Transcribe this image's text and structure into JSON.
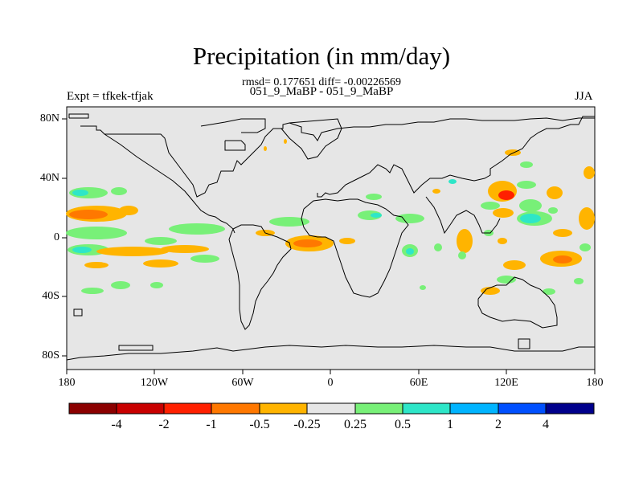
{
  "title": "Precipitation (in mm/day)",
  "stats": "rmsd= 0.177651 diff= -0.00226569",
  "subtitle": "051_9_MaBP - 051_9_MaBP",
  "left_label": "Expt = tfkek-tfjak",
  "right_label": "JJA",
  "lat_labels": [
    "80N",
    "40N",
    "0",
    "40S",
    "80S"
  ],
  "lon_labels": [
    "180",
    "120W",
    "60W",
    "0",
    "60E",
    "120E",
    "180"
  ],
  "colorbar": {
    "colors": [
      "#8b0000",
      "#c80000",
      "#ff2000",
      "#ff7800",
      "#ffb400",
      "#e6e6e6",
      "#78f078",
      "#2ee6c8",
      "#00b4ff",
      "#0050ff",
      "#00008c"
    ],
    "labels": [
      "-4",
      "-2",
      "-1",
      "-0.5",
      "-0.25",
      "0.25",
      "0.5",
      "1",
      "2",
      "4"
    ]
  },
  "colors": {
    "land_background": "#e6e6e6",
    "coastline": "#000000"
  }
}
